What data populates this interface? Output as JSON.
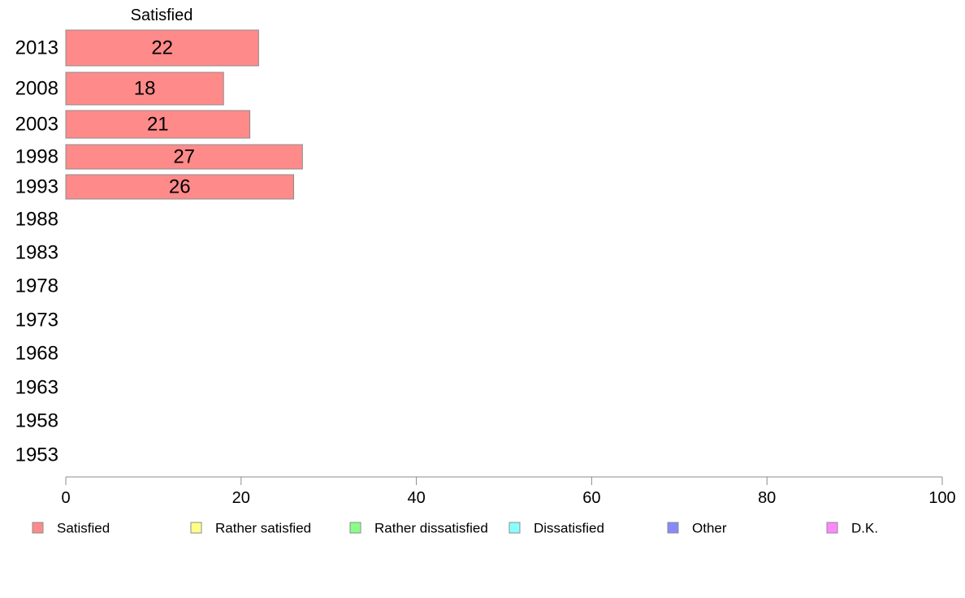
{
  "chart_data": {
    "type": "bar",
    "orientation": "horizontal",
    "stacked": true,
    "categories": [
      "2013",
      "2008",
      "2003",
      "1998",
      "1993",
      "1988",
      "1983",
      "1978",
      "1973",
      "1968",
      "1963",
      "1958",
      "1953"
    ],
    "series": [
      {
        "name": "Satisfied",
        "color": "#ff8a8a",
        "values": [
          22,
          18,
          21,
          27,
          26,
          null,
          null,
          null,
          null,
          null,
          null,
          null,
          null
        ]
      },
      {
        "name": "Rather satisfied",
        "color": "#ffff88",
        "values": [
          null,
          null,
          null,
          null,
          null,
          null,
          null,
          null,
          null,
          null,
          null,
          null,
          null
        ]
      },
      {
        "name": "Rather dissatisfied",
        "color": "#88ff88",
        "values": [
          null,
          null,
          null,
          null,
          null,
          null,
          null,
          null,
          null,
          null,
          null,
          null,
          null
        ]
      },
      {
        "name": "Dissatisfied",
        "color": "#88ffff",
        "values": [
          null,
          null,
          null,
          null,
          null,
          null,
          null,
          null,
          null,
          null,
          null,
          null,
          null
        ]
      },
      {
        "name": "Other",
        "color": "#8888ff",
        "values": [
          null,
          null,
          null,
          null,
          null,
          null,
          null,
          null,
          null,
          null,
          null,
          null,
          null
        ]
      },
      {
        "name": "D.K.",
        "color": "#ff88ff",
        "values": [
          null,
          null,
          null,
          null,
          null,
          null,
          null,
          null,
          null,
          null,
          null,
          null,
          null
        ]
      }
    ],
    "header": "Satisfied",
    "xlim": [
      0,
      100
    ],
    "xticks": [
      0,
      20,
      40,
      60,
      80,
      100
    ],
    "grid": false,
    "legend_position": "bottom"
  }
}
